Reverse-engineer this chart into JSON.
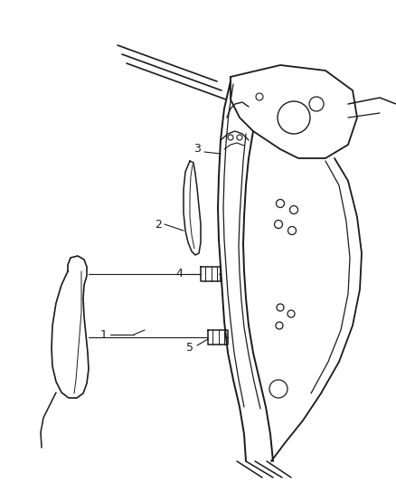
{
  "background_color": "#ffffff",
  "line_color": "#1a1a1a",
  "figure_width": 4.38,
  "figure_height": 5.33,
  "dpi": 100
}
